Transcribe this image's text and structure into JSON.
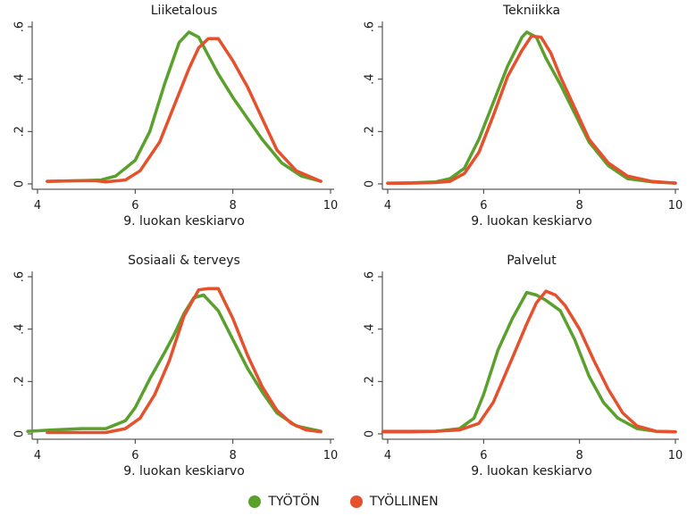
{
  "colors": {
    "series_a": "#5aa02c",
    "series_b": "#e5502d"
  },
  "legend": [
    {
      "label": "TYÖTÖN",
      "color": "#5aa02c"
    },
    {
      "label": "TYÖLLINEN",
      "color": "#e5502d"
    }
  ],
  "chart_data": [
    {
      "type": "line",
      "title": "Liiketalous",
      "xlabel": "9. luokan keskiarvo",
      "ylabel": "",
      "xlim": [
        4,
        10
      ],
      "ylim": [
        0,
        0.6
      ],
      "xticks": [
        {
          "v": 4,
          "label": "4"
        },
        {
          "v": 6,
          "label": "6"
        },
        {
          "v": 8,
          "label": "8"
        },
        {
          "v": 10,
          "label": "10"
        }
      ],
      "yticks": [
        {
          "v": 0,
          "label": "0"
        },
        {
          "v": 0.2,
          "label": ".2"
        },
        {
          "v": 0.4,
          "label": ".4"
        },
        {
          "v": 0.6,
          "label": ".6"
        }
      ],
      "series": [
        {
          "name": "TYÖTÖN",
          "color": "#5aa02c",
          "x": [
            4.2,
            4.8,
            5.3,
            5.6,
            6.0,
            6.3,
            6.6,
            6.9,
            7.1,
            7.3,
            7.5,
            7.7,
            8.0,
            8.3,
            8.6,
            9.0,
            9.4,
            9.8
          ],
          "y": [
            0.01,
            0.012,
            0.015,
            0.03,
            0.09,
            0.2,
            0.38,
            0.54,
            0.58,
            0.56,
            0.49,
            0.42,
            0.33,
            0.25,
            0.17,
            0.08,
            0.03,
            0.01
          ]
        },
        {
          "name": "TYÖLLINEN",
          "color": "#e5502d",
          "x": [
            4.2,
            4.8,
            5.2,
            5.4,
            5.8,
            6.1,
            6.5,
            6.8,
            7.1,
            7.3,
            7.5,
            7.7,
            8.0,
            8.3,
            8.6,
            8.9,
            9.3,
            9.8
          ],
          "y": [
            0.01,
            0.012,
            0.012,
            0.008,
            0.015,
            0.05,
            0.16,
            0.3,
            0.44,
            0.52,
            0.555,
            0.555,
            0.47,
            0.37,
            0.25,
            0.13,
            0.05,
            0.01
          ]
        }
      ]
    },
    {
      "type": "line",
      "title": "Tekniikka",
      "xlabel": "9. luokan keskiarvo",
      "ylabel": "",
      "xlim": [
        4,
        10
      ],
      "ylim": [
        0,
        0.6
      ],
      "xticks": [
        {
          "v": 4,
          "label": "4"
        },
        {
          "v": 6,
          "label": "6"
        },
        {
          "v": 8,
          "label": "8"
        },
        {
          "v": 10,
          "label": "10"
        }
      ],
      "yticks": [
        {
          "v": 0,
          "label": "0"
        },
        {
          "v": 0.2,
          "label": ".2"
        },
        {
          "v": 0.4,
          "label": ".4"
        },
        {
          "v": 0.6,
          "label": ".6"
        }
      ],
      "series": [
        {
          "name": "TYÖTÖN",
          "color": "#5aa02c",
          "x": [
            4.0,
            4.5,
            5.0,
            5.3,
            5.6,
            5.9,
            6.2,
            6.5,
            6.8,
            6.9,
            7.1,
            7.3,
            7.6,
            7.9,
            8.2,
            8.6,
            9.0,
            9.5,
            10.0
          ],
          "y": [
            0.003,
            0.004,
            0.008,
            0.02,
            0.06,
            0.17,
            0.31,
            0.45,
            0.56,
            0.58,
            0.56,
            0.48,
            0.38,
            0.27,
            0.16,
            0.07,
            0.02,
            0.008,
            0.003
          ]
        },
        {
          "name": "TYÖLLINEN",
          "color": "#e5502d",
          "x": [
            4.0,
            4.5,
            5.0,
            5.3,
            5.6,
            5.9,
            6.2,
            6.5,
            6.8,
            7.0,
            7.2,
            7.4,
            7.6,
            7.9,
            8.2,
            8.6,
            9.0,
            9.5,
            10.0
          ],
          "y": [
            0.002,
            0.003,
            0.005,
            0.01,
            0.04,
            0.12,
            0.26,
            0.41,
            0.51,
            0.565,
            0.56,
            0.5,
            0.41,
            0.29,
            0.17,
            0.08,
            0.03,
            0.01,
            0.003
          ]
        }
      ]
    },
    {
      "type": "line",
      "title": "Sosiaali & terveys",
      "xlabel": "9. luokan keskiarvo",
      "ylabel": "",
      "xlim": [
        4,
        10
      ],
      "ylim": [
        0,
        0.6
      ],
      "xticks": [
        {
          "v": 4,
          "label": "4"
        },
        {
          "v": 6,
          "label": "6"
        },
        {
          "v": 8,
          "label": "8"
        },
        {
          "v": 10,
          "label": "10"
        }
      ],
      "yticks": [
        {
          "v": 0,
          "label": "0"
        },
        {
          "v": 0.2,
          "label": ".2"
        },
        {
          "v": 0.4,
          "label": ".4"
        },
        {
          "v": 0.6,
          "label": ".6"
        }
      ],
      "series": [
        {
          "name": "TYÖTÖN",
          "color": "#5aa02c",
          "x": [
            3.8,
            4.3,
            4.9,
            5.4,
            5.8,
            6.0,
            6.3,
            6.6,
            6.8,
            7.0,
            7.2,
            7.4,
            7.7,
            8.0,
            8.3,
            8.6,
            8.9,
            9.3,
            9.8
          ],
          "y": [
            0.01,
            0.015,
            0.02,
            0.02,
            0.05,
            0.1,
            0.21,
            0.31,
            0.38,
            0.46,
            0.52,
            0.53,
            0.47,
            0.36,
            0.25,
            0.16,
            0.08,
            0.03,
            0.01
          ]
        },
        {
          "name": "TYÖLLINEN",
          "color": "#e5502d",
          "x": [
            4.2,
            4.8,
            5.4,
            5.8,
            6.1,
            6.4,
            6.7,
            7.0,
            7.3,
            7.5,
            7.7,
            8.0,
            8.3,
            8.6,
            8.9,
            9.2,
            9.5,
            9.8
          ],
          "y": [
            0.005,
            0.005,
            0.005,
            0.02,
            0.06,
            0.15,
            0.28,
            0.45,
            0.55,
            0.555,
            0.555,
            0.44,
            0.3,
            0.18,
            0.09,
            0.04,
            0.015,
            0.008
          ]
        }
      ]
    },
    {
      "type": "line",
      "title": "Palvelut",
      "xlabel": "9. luokan keskiarvo",
      "ylabel": "",
      "xlim": [
        4,
        10
      ],
      "ylim": [
        0,
        0.6
      ],
      "xticks": [
        {
          "v": 4,
          "label": "4"
        },
        {
          "v": 6,
          "label": "6"
        },
        {
          "v": 8,
          "label": "8"
        },
        {
          "v": 10,
          "label": "10"
        }
      ],
      "yticks": [
        {
          "v": 0,
          "label": "0"
        },
        {
          "v": 0.2,
          "label": ".2"
        },
        {
          "v": 0.4,
          "label": ".4"
        },
        {
          "v": 0.6,
          "label": ".6"
        }
      ],
      "series": [
        {
          "name": "TYÖTÖN",
          "color": "#5aa02c",
          "x": [
            3.9,
            4.5,
            5.0,
            5.5,
            5.8,
            6.0,
            6.3,
            6.6,
            6.9,
            7.1,
            7.3,
            7.6,
            7.9,
            8.2,
            8.5,
            8.8,
            9.2,
            9.6,
            10.0
          ],
          "y": [
            0.01,
            0.01,
            0.01,
            0.02,
            0.06,
            0.15,
            0.32,
            0.44,
            0.54,
            0.53,
            0.51,
            0.47,
            0.36,
            0.22,
            0.12,
            0.06,
            0.02,
            0.01,
            0.008
          ]
        },
        {
          "name": "TYÖLLINEN",
          "color": "#e5502d",
          "x": [
            3.9,
            4.5,
            5.0,
            5.5,
            5.9,
            6.2,
            6.6,
            6.9,
            7.1,
            7.3,
            7.5,
            7.7,
            8.0,
            8.3,
            8.6,
            8.9,
            9.2,
            9.6,
            10.0
          ],
          "y": [
            0.008,
            0.008,
            0.01,
            0.015,
            0.04,
            0.12,
            0.29,
            0.42,
            0.5,
            0.545,
            0.53,
            0.49,
            0.4,
            0.28,
            0.17,
            0.08,
            0.03,
            0.01,
            0.008
          ]
        }
      ]
    }
  ]
}
